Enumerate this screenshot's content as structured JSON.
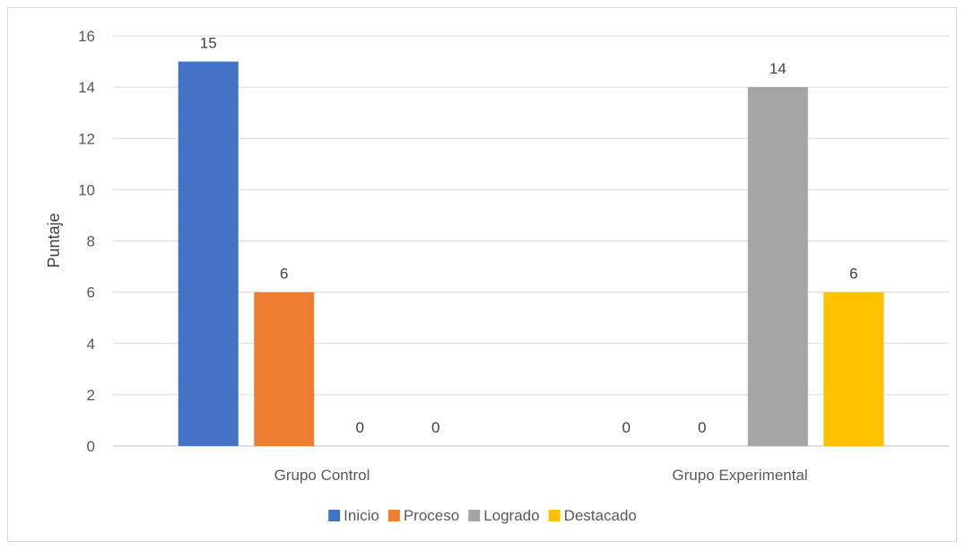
{
  "chart_data": {
    "type": "bar",
    "categories": [
      "Grupo Control",
      "Grupo Experimental"
    ],
    "series": [
      {
        "name": "Inicio",
        "values": [
          15,
          0
        ],
        "color": "#4472C4"
      },
      {
        "name": "Proceso",
        "values": [
          6,
          0
        ],
        "color": "#ED7D31"
      },
      {
        "name": "Logrado",
        "values": [
          0,
          14
        ],
        "color": "#A5A5A5"
      },
      {
        "name": "Destacado",
        "values": [
          0,
          6
        ],
        "color": "#FFC000"
      }
    ],
    "title": "",
    "xlabel": "",
    "ylabel": "Puntaje",
    "ylim": [
      0,
      16
    ],
    "yticks": [
      0,
      2,
      4,
      6,
      8,
      10,
      12,
      14,
      16
    ],
    "grid": true,
    "data_labels": true,
    "legend_position": "bottom"
  }
}
